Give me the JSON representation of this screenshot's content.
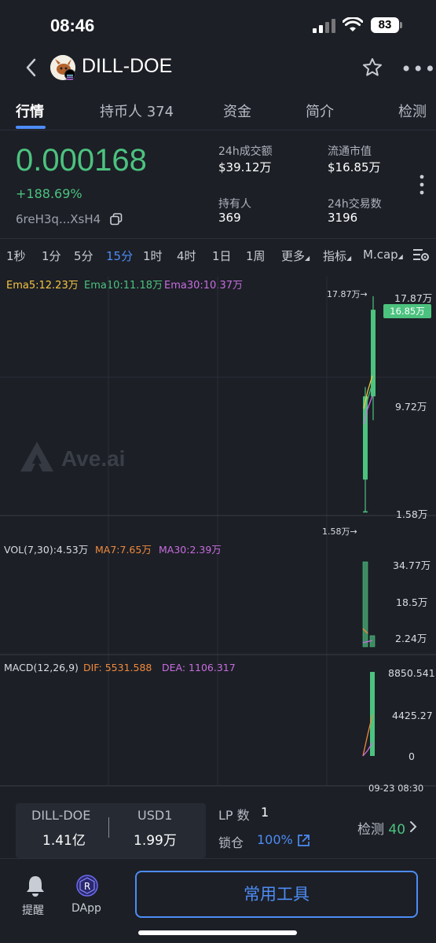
{
  "status_bar": {
    "time": "08:46",
    "battery": "83"
  },
  "header": {
    "token_name": "DILL-DOE"
  },
  "tabs": [
    {
      "label": "行情"
    },
    {
      "label": "持币人 374"
    },
    {
      "label": "资金"
    },
    {
      "label": "简介"
    },
    {
      "label": "检测"
    }
  ],
  "price": {
    "value": "0.000168",
    "change": "+188.69%",
    "address": "6reH3q...XsH4"
  },
  "stats": {
    "vol24h_label": "24h成交额",
    "vol24h": "$39.12万",
    "mcap_label": "流通市值",
    "mcap": "$16.85万",
    "holders_label": "持有人",
    "holders": "369",
    "tx24h_label": "24h交易数",
    "tx24h": "3196"
  },
  "intervals": [
    "1秒",
    "1分",
    "5分",
    "15分",
    "1时",
    "4时",
    "1日",
    "1周"
  ],
  "interval_menus": {
    "more": "更多",
    "indicators": "指标",
    "mcap": "M.cap"
  },
  "active_interval": "15分",
  "chart_data": {
    "type": "candlestick",
    "ema": {
      "ema5": "Ema5:12.23万",
      "ema10": "Ema10:11.18万",
      "ema30": "Ema30:10.37万"
    },
    "price_axis": [
      "17.87万",
      "9.72万",
      "1.58万"
    ],
    "current_tag": "16.85万",
    "high_marker": "17.87万→",
    "low_marker": "1.58万→",
    "candles": [
      {
        "open": 1.58,
        "close": 1.6,
        "high": 1.7,
        "low": 1.58
      },
      {
        "open": 4.0,
        "close": 10.3,
        "high": 11.0,
        "low": 1.58
      },
      {
        "open": 10.3,
        "close": 16.85,
        "high": 17.87,
        "low": 8.5
      }
    ],
    "volume": {
      "label": "VOL(7,30):4.53万",
      "ma7": "MA7:7.65万",
      "ma30": "MA30:2.39万",
      "axis": [
        "34.77万",
        "18.5万",
        "2.24万"
      ],
      "bars": [
        34.77,
        4.53
      ]
    },
    "macd": {
      "label": "MACD(12,26,9)",
      "dif": "DIF:  5531.588",
      "dea": "DEA:  1106.317",
      "axis": [
        "8850.541",
        "4425.27",
        "0"
      ],
      "hist": [
        8850
      ]
    },
    "time_label": "09-23 08:30",
    "watermark": "Ave.ai"
  },
  "lp_panel": {
    "token_label": "DILL-DOE",
    "token_amount": "1.41亿",
    "quote_label": "USD1",
    "quote_amount": "1.99万",
    "lp_label": "LP 数",
    "lp_count": "1",
    "lock_label": "锁仓",
    "lock_pct": "100%",
    "check_label": "检测",
    "check_count": "40"
  },
  "bottom_nav": {
    "alert": "提醒",
    "dapp": "DApp",
    "tools": "常用工具"
  },
  "colors": {
    "green": "#4cc27f",
    "blue": "#4d8cf5",
    "ema5": "#f5c542",
    "ema10": "#4cc27f",
    "ema30": "#c86de0",
    "orange": "#f08a3c"
  }
}
